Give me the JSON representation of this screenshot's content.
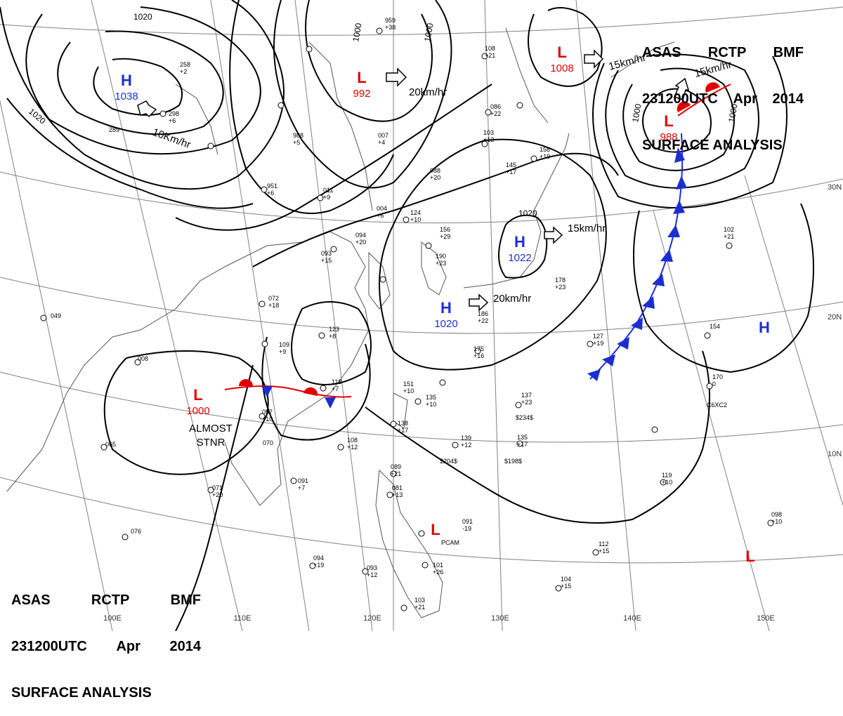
{
  "header": {
    "line1": [
      "ASAS",
      "RCTP",
      "BMF"
    ],
    "line2": [
      "231200UTC",
      "Apr",
      "2014"
    ],
    "line3": "SURFACE ANALYSIS"
  },
  "lon_labels": [
    "100E",
    "110E",
    "120E",
    "130E",
    "140E",
    "150E"
  ],
  "lat_labels": [
    "30N",
    "20N",
    "10N"
  ],
  "isobar_labels": [
    "1020",
    "1020",
    "1000",
    "1000",
    "1000",
    "1000",
    "1020"
  ],
  "pressure_centers": [
    {
      "type": "H",
      "value": "1038"
    },
    {
      "type": "L",
      "value": "992"
    },
    {
      "type": "L",
      "value": "1008"
    },
    {
      "type": "L",
      "value": "988"
    },
    {
      "type": "H",
      "value": "1022"
    },
    {
      "type": "H",
      "value": "1020"
    },
    {
      "type": "L",
      "value": "1000"
    },
    {
      "type": "H",
      "value": ""
    },
    {
      "type": "L",
      "value": ""
    },
    {
      "type": "L",
      "value": ""
    }
  ],
  "motion_labels": [
    "10Km/hr",
    "20km/hr",
    "15km/hr",
    "15km/hr",
    "15km/hr",
    "20km/hr"
  ],
  "stationary_note": [
    "ALMOST",
    "STNR"
  ],
  "stations": [
    {
      "t": "298",
      "d": "+6"
    },
    {
      "t": "289",
      "d": ""
    },
    {
      "t": "258",
      "d": "+2"
    },
    {
      "t": "959",
      "d": "+38"
    },
    {
      "t": "988",
      "d": "+5"
    },
    {
      "t": "951",
      "d": "+6"
    },
    {
      "t": "011",
      "d": "+9"
    },
    {
      "t": "088",
      "d": "+20"
    },
    {
      "t": "004",
      "d": "+6"
    },
    {
      "t": "124",
      "d": "+10"
    },
    {
      "t": "094",
      "d": "+20"
    },
    {
      "t": "093",
      "d": "+15"
    },
    {
      "t": "156",
      "d": "+29"
    },
    {
      "t": "190",
      "d": "+23"
    },
    {
      "t": "072",
      "d": "+18"
    },
    {
      "t": "049",
      "d": ""
    },
    {
      "t": "123",
      "d": "+8"
    },
    {
      "t": "109",
      "d": "+9"
    },
    {
      "t": "175",
      "d": "+16"
    },
    {
      "t": "118",
      "d": "+7"
    },
    {
      "t": "057",
      "d": "+10"
    },
    {
      "t": "008",
      "d": ""
    },
    {
      "t": "065",
      "d": ""
    },
    {
      "t": "070",
      "d": ""
    },
    {
      "t": "091",
      "d": "+7"
    },
    {
      "t": "071",
      "d": "+20"
    },
    {
      "t": "108",
      "d": "+12"
    },
    {
      "t": "138",
      "d": "+17"
    },
    {
      "t": "151",
      "d": "+10"
    },
    {
      "t": "135",
      "d": "+10"
    },
    {
      "t": "139",
      "d": "+12"
    },
    {
      "t": "135",
      "d": "+17"
    },
    {
      "t": "137",
      "d": "+23"
    },
    {
      "t": "127",
      "d": "+19"
    },
    {
      "t": "154",
      "d": ""
    },
    {
      "t": "170",
      "d": "0"
    },
    {
      "t": "102",
      "d": "+21"
    },
    {
      "t": "119",
      "d": "+10"
    },
    {
      "t": "098",
      "d": "+10"
    },
    {
      "t": "112",
      "d": "+15"
    },
    {
      "t": "104",
      "d": "+15"
    },
    {
      "t": "089",
      "d": "+21"
    },
    {
      "t": "081",
      "d": "+13"
    },
    {
      "t": "091",
      "d": "-19"
    },
    {
      "t": "101",
      "d": "+26"
    },
    {
      "t": "093",
      "d": "+12"
    },
    {
      "t": "094",
      "d": "+19"
    },
    {
      "t": "103",
      "d": "+21"
    },
    {
      "t": "076",
      "d": ""
    },
    {
      "t": "178",
      "d": "+23"
    },
    {
      "t": "158",
      "d": "+19"
    },
    {
      "t": "103",
      "d": "+13"
    },
    {
      "t": "086",
      "d": "+22"
    },
    {
      "t": "108",
      "d": "+21"
    },
    {
      "t": "007",
      "d": "+4"
    },
    {
      "t": "145",
      "d": "+17"
    },
    {
      "t": "186",
      "d": "+22"
    }
  ],
  "station_extra": [
    "$234$",
    "$198$",
    "$204$",
    "C6XC2",
    "PCAM"
  ],
  "colors": {
    "low": "#e00000",
    "high": "#1b2fd0",
    "isobar": "#000000",
    "grid": "#777777",
    "coast": "#555555"
  }
}
